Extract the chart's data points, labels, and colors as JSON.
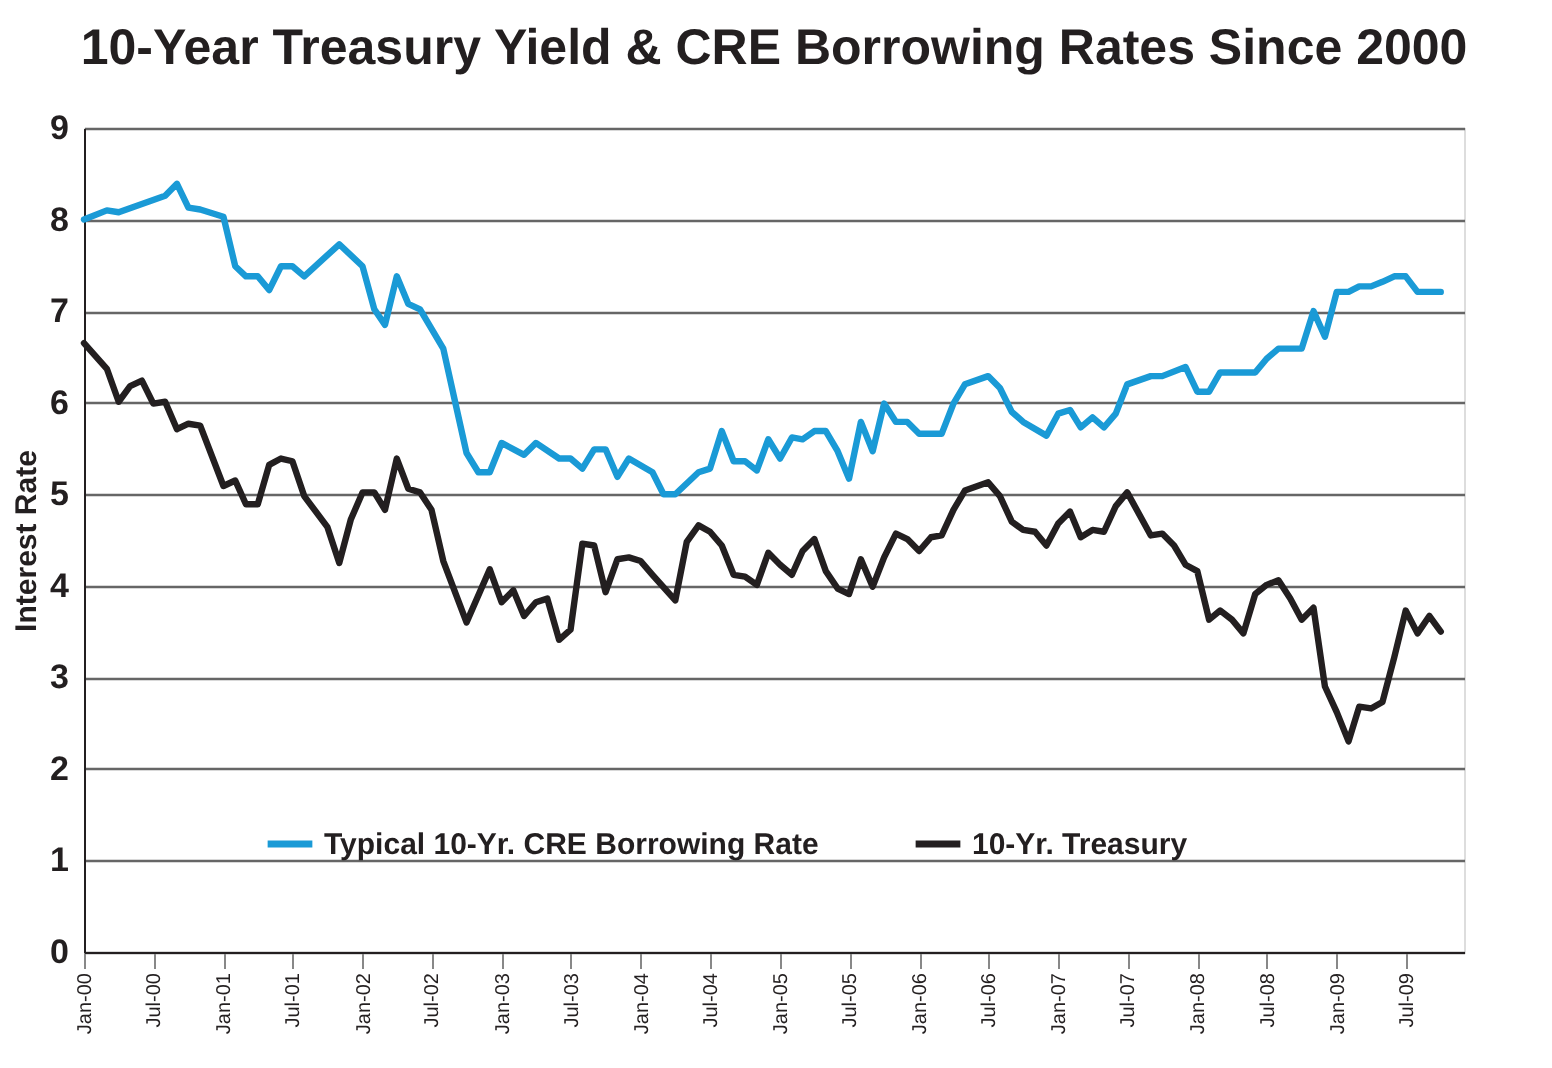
{
  "chart_data": {
    "type": "line",
    "title": "10-Year Treasury Yield & CRE Borrowing Rates Since 2000",
    "ylabel": "Interest Rate",
    "xlim": [
      "2000-01",
      "2009-12"
    ],
    "xticks": [
      {
        "value": "2000-01",
        "label": "Jan-00"
      },
      {
        "value": "2000-07",
        "label": "Jul-00"
      },
      {
        "value": "2001-01",
        "label": "Jan-01"
      },
      {
        "value": "2001-07",
        "label": "Jul-01"
      },
      {
        "value": "2002-01",
        "label": "Jan-02"
      },
      {
        "value": "2002-07",
        "label": "Jul-02"
      },
      {
        "value": "2003-01",
        "label": "Jan-03"
      },
      {
        "value": "2003-07",
        "label": "Jul-03"
      },
      {
        "value": "2004-01",
        "label": "Jan-04"
      },
      {
        "value": "2004-07",
        "label": "Jul-04"
      },
      {
        "value": "2005-01",
        "label": "Jan-05"
      },
      {
        "value": "2005-07",
        "label": "Jul-05"
      },
      {
        "value": "2006-01",
        "label": "Jan-06"
      },
      {
        "value": "2006-07",
        "label": "Jul-06"
      },
      {
        "value": "2007-01",
        "label": "Jan-07"
      },
      {
        "value": "2007-07",
        "label": "Jul-07"
      },
      {
        "value": "2008-01",
        "label": "Jan-08"
      },
      {
        "value": "2008-07",
        "label": "Jul-08"
      },
      {
        "value": "2009-01",
        "label": "Jan-09"
      },
      {
        "value": "2009-07",
        "label": "Jul-09"
      }
    ],
    "ylim": [
      0,
      9
    ],
    "yticks": [
      0,
      1,
      2,
      3,
      4,
      5,
      6,
      7,
      8,
      9
    ],
    "grid": "y",
    "legend": "bottom",
    "line_style": "solid",
    "marker": "none",
    "series": [
      {
        "name": "Typical 10-Yr. CRE Borrowing Rate",
        "color": "#1a9ad6",
        "x": [
          "2000-01",
          "2000-03",
          "2000-04",
          "2000-08",
          "2000-09",
          "2000-10",
          "2000-11",
          "2001-01",
          "2001-02",
          "2001-03",
          "2001-04",
          "2001-05",
          "2001-06",
          "2001-07",
          "2001-08",
          "2001-11",
          "2002-01",
          "2002-02",
          "2002-03",
          "2002-04",
          "2002-05",
          "2002-06",
          "2002-08",
          "2002-09",
          "2002-10",
          "2002-11",
          "2002-12",
          "2003-01",
          "2003-03",
          "2003-04",
          "2003-06",
          "2003-07",
          "2003-08",
          "2003-09",
          "2003-10",
          "2003-11",
          "2003-12",
          "2004-02",
          "2004-03",
          "2004-04",
          "2004-06",
          "2004-07",
          "2004-08",
          "2004-09",
          "2004-10",
          "2004-11",
          "2004-12",
          "2005-01",
          "2005-02",
          "2005-03",
          "2005-04",
          "2005-05",
          "2005-06",
          "2005-07",
          "2005-08",
          "2005-09",
          "2005-10",
          "2005-11",
          "2005-12",
          "2006-01",
          "2006-02",
          "2006-03",
          "2006-04",
          "2006-05",
          "2006-07",
          "2006-08",
          "2006-09",
          "2006-10",
          "2006-12",
          "2007-01",
          "2007-02",
          "2007-03",
          "2007-04",
          "2007-05",
          "2007-06",
          "2007-07",
          "2007-09",
          "2007-10",
          "2007-12",
          "2008-01",
          "2008-02",
          "2008-03",
          "2008-06",
          "2008-07",
          "2008-08",
          "2008-10",
          "2008-11",
          "2008-12",
          "2009-01",
          "2009-02",
          "2009-03",
          "2009-04",
          "2009-05",
          "2009-06",
          "2009-07",
          "2009-08",
          "2009-10"
        ],
        "values": [
          8.0,
          8.1,
          8.08,
          8.26,
          8.39,
          8.13,
          8.11,
          8.03,
          7.49,
          7.38,
          7.38,
          7.23,
          7.49,
          7.49,
          7.38,
          7.73,
          7.49,
          7.02,
          6.85,
          7.38,
          7.08,
          7.02,
          6.59,
          6.01,
          5.45,
          5.24,
          5.24,
          5.56,
          5.43,
          5.56,
          5.39,
          5.39,
          5.28,
          5.49,
          5.49,
          5.19,
          5.39,
          5.24,
          5.0,
          5.0,
          5.24,
          5.28,
          5.69,
          5.36,
          5.36,
          5.26,
          5.6,
          5.39,
          5.62,
          5.6,
          5.69,
          5.69,
          5.47,
          5.17,
          5.79,
          5.47,
          5.99,
          5.79,
          5.79,
          5.66,
          5.66,
          5.66,
          5.99,
          6.2,
          6.29,
          6.16,
          5.9,
          5.79,
          5.64,
          5.88,
          5.92,
          5.73,
          5.84,
          5.73,
          5.88,
          6.2,
          6.29,
          6.29,
          6.39,
          6.12,
          6.12,
          6.33,
          6.33,
          6.48,
          6.59,
          6.59,
          7.0,
          6.72,
          7.21,
          7.21,
          7.27,
          7.27,
          7.32,
          7.38,
          7.38,
          7.21,
          7.21
        ]
      },
      {
        "name": "10-Yr. Treasury",
        "color": "#231f20",
        "x": [
          "2000-01",
          "2000-03",
          "2000-04",
          "2000-05",
          "2000-06",
          "2000-07",
          "2000-08",
          "2000-09",
          "2000-10",
          "2000-11",
          "2001-01",
          "2001-02",
          "2001-03",
          "2001-04",
          "2001-05",
          "2001-06",
          "2001-07",
          "2001-08",
          "2001-10",
          "2001-11",
          "2001-12",
          "2002-01",
          "2002-02",
          "2002-03",
          "2002-04",
          "2002-05",
          "2002-06",
          "2002-07",
          "2002-08",
          "2002-10",
          "2002-12",
          "2003-01",
          "2003-02",
          "2003-03",
          "2003-04",
          "2003-05",
          "2003-06",
          "2003-07",
          "2003-08",
          "2003-09",
          "2003-10",
          "2003-11",
          "2003-12",
          "2004-01",
          "2004-02",
          "2004-04",
          "2004-05",
          "2004-06",
          "2004-07",
          "2004-08",
          "2004-09",
          "2004-10",
          "2004-11",
          "2004-12",
          "2005-01",
          "2005-02",
          "2005-03",
          "2005-04",
          "2005-05",
          "2005-06",
          "2005-07",
          "2005-08",
          "2005-09",
          "2005-10",
          "2005-11",
          "2005-12",
          "2006-01",
          "2006-02",
          "2006-03",
          "2006-04",
          "2006-05",
          "2006-07",
          "2006-08",
          "2006-09",
          "2006-10",
          "2006-11",
          "2006-12",
          "2007-01",
          "2007-02",
          "2007-03",
          "2007-04",
          "2007-05",
          "2007-06",
          "2007-07",
          "2007-09",
          "2007-10",
          "2007-11",
          "2007-12",
          "2008-01",
          "2008-02",
          "2008-03",
          "2008-04",
          "2008-05",
          "2008-06",
          "2008-07",
          "2008-08",
          "2008-09",
          "2008-10",
          "2008-11",
          "2008-12",
          "2009-01",
          "2009-02",
          "2009-03",
          "2009-04",
          "2009-05",
          "2009-06",
          "2009-07",
          "2009-08",
          "2009-09",
          "2009-10"
        ],
        "values": [
          6.65,
          6.37,
          6.01,
          6.18,
          6.24,
          5.99,
          6.01,
          5.71,
          5.77,
          5.75,
          5.09,
          5.15,
          4.89,
          4.89,
          5.32,
          5.39,
          5.36,
          4.98,
          4.64,
          4.25,
          4.72,
          5.02,
          5.02,
          4.83,
          5.39,
          5.06,
          5.02,
          4.83,
          4.27,
          3.6,
          4.18,
          3.82,
          3.95,
          3.67,
          3.82,
          3.86,
          3.41,
          3.52,
          4.46,
          4.44,
          3.93,
          4.29,
          4.31,
          4.27,
          4.12,
          3.84,
          4.48,
          4.66,
          4.59,
          4.44,
          4.12,
          4.1,
          4.01,
          4.36,
          4.23,
          4.12,
          4.38,
          4.51,
          4.16,
          3.97,
          3.91,
          4.29,
          3.99,
          4.31,
          4.57,
          4.51,
          4.38,
          4.53,
          4.55,
          4.83,
          5.04,
          5.13,
          4.98,
          4.7,
          4.61,
          4.59,
          4.44,
          4.68,
          4.81,
          4.53,
          4.61,
          4.59,
          4.87,
          5.02,
          4.55,
          4.57,
          4.44,
          4.23,
          4.16,
          3.63,
          3.73,
          3.63,
          3.48,
          3.91,
          4.01,
          4.06,
          3.86,
          3.63,
          3.76,
          2.9,
          2.62,
          2.3,
          2.68,
          2.66,
          2.73,
          3.22,
          3.73,
          3.48,
          3.67,
          3.5
        ]
      }
    ]
  }
}
